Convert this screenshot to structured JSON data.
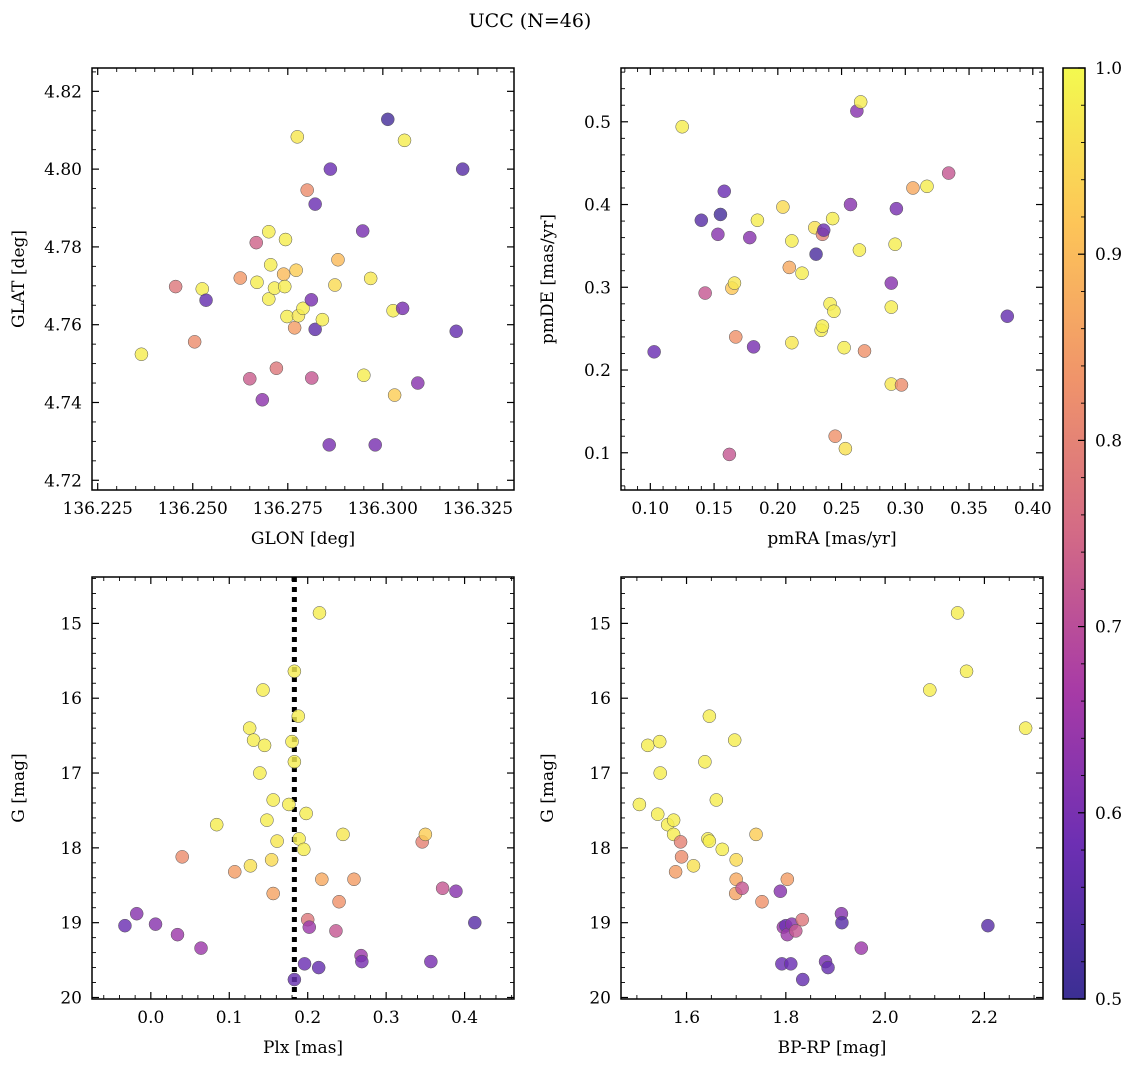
{
  "figure": {
    "title": "UCC (N=46)"
  },
  "colorbar": {
    "min": 0.5,
    "max": 1.0,
    "ticks": [
      "0.5",
      "0.6",
      "0.7",
      "0.8",
      "0.9",
      "1.0"
    ],
    "colormap": "plasma",
    "stops": [
      "#3b2f93",
      "#6d2fb3",
      "#a83ba6",
      "#d36a86",
      "#f0946a",
      "#fdc558",
      "#f3f94f"
    ]
  },
  "chart_data": [
    {
      "id": "glon-glat",
      "type": "scatter",
      "xlabel": "GLON [deg]",
      "ylabel": "GLAT [deg]",
      "xlim": [
        136.2235,
        136.3345
      ],
      "ylim": [
        4.7175,
        4.826
      ],
      "xticks": [
        "136.225",
        "136.250",
        "136.275",
        "136.300",
        "136.325"
      ],
      "yticks": [
        "4.72",
        "4.74",
        "4.76",
        "4.78",
        "4.80",
        "4.82"
      ],
      "points": [
        {
          "x": 136.2365,
          "y": 4.7524,
          "c": 0.98
        },
        {
          "x": 136.2455,
          "y": 4.7698,
          "c": 0.78
        },
        {
          "x": 136.2505,
          "y": 4.7556,
          "c": 0.82
        },
        {
          "x": 136.2525,
          "y": 4.7692,
          "c": 0.98
        },
        {
          "x": 136.2535,
          "y": 4.7663,
          "c": 0.57
        },
        {
          "x": 136.2625,
          "y": 4.772,
          "c": 0.84
        },
        {
          "x": 136.265,
          "y": 4.7461,
          "c": 0.73
        },
        {
          "x": 136.2667,
          "y": 4.7811,
          "c": 0.74
        },
        {
          "x": 136.2669,
          "y": 4.7709,
          "c": 0.98
        },
        {
          "x": 136.2683,
          "y": 4.7407,
          "c": 0.63
        },
        {
          "x": 136.27,
          "y": 4.7839,
          "c": 0.98
        },
        {
          "x": 136.27,
          "y": 4.7666,
          "c": 0.98
        },
        {
          "x": 136.2705,
          "y": 4.7754,
          "c": 0.98
        },
        {
          "x": 136.2715,
          "y": 4.7694,
          "c": 0.98
        },
        {
          "x": 136.272,
          "y": 4.7488,
          "c": 0.78
        },
        {
          "x": 136.2739,
          "y": 4.773,
          "c": 0.9
        },
        {
          "x": 136.2742,
          "y": 4.7698,
          "c": 0.98
        },
        {
          "x": 136.2744,
          "y": 4.7819,
          "c": 0.98
        },
        {
          "x": 136.2748,
          "y": 4.7621,
          "c": 0.98
        },
        {
          "x": 136.2768,
          "y": 4.7592,
          "c": 0.85
        },
        {
          "x": 136.2772,
          "y": 4.774,
          "c": 0.93
        },
        {
          "x": 136.2775,
          "y": 4.8083,
          "c": 0.97
        },
        {
          "x": 136.2778,
          "y": 4.7623,
          "c": 0.97
        },
        {
          "x": 136.279,
          "y": 4.7642,
          "c": 0.98
        },
        {
          "x": 136.2801,
          "y": 4.7946,
          "c": 0.82
        },
        {
          "x": 136.2812,
          "y": 4.7664,
          "c": 0.6
        },
        {
          "x": 136.2813,
          "y": 4.7463,
          "c": 0.72
        },
        {
          "x": 136.2822,
          "y": 4.791,
          "c": 0.58
        },
        {
          "x": 136.2822,
          "y": 4.7588,
          "c": 0.56
        },
        {
          "x": 136.2841,
          "y": 4.7613,
          "c": 0.98
        },
        {
          "x": 136.2859,
          "y": 4.7291,
          "c": 0.6
        },
        {
          "x": 136.2862,
          "y": 4.8,
          "c": 0.58
        },
        {
          "x": 136.2874,
          "y": 4.7702,
          "c": 0.95
        },
        {
          "x": 136.2882,
          "y": 4.7767,
          "c": 0.9
        },
        {
          "x": 136.2947,
          "y": 4.7841,
          "c": 0.6
        },
        {
          "x": 136.295,
          "y": 4.747,
          "c": 0.98
        },
        {
          "x": 136.2968,
          "y": 4.7719,
          "c": 0.97
        },
        {
          "x": 136.298,
          "y": 4.7291,
          "c": 0.6
        },
        {
          "x": 136.3013,
          "y": 4.8128,
          "c": 0.52
        },
        {
          "x": 136.3027,
          "y": 4.7636,
          "c": 0.98
        },
        {
          "x": 136.3031,
          "y": 4.7419,
          "c": 0.93
        },
        {
          "x": 136.3052,
          "y": 4.7642,
          "c": 0.6
        },
        {
          "x": 136.3057,
          "y": 4.8074,
          "c": 0.98
        },
        {
          "x": 136.3092,
          "y": 4.745,
          "c": 0.62
        },
        {
          "x": 136.3193,
          "y": 4.7583,
          "c": 0.57
        },
        {
          "x": 136.321,
          "y": 4.8,
          "c": 0.55
        }
      ]
    },
    {
      "id": "pmra-pmde",
      "type": "scatter",
      "xlabel": "pmRA [mas/yr]",
      "ylabel": "pmDE [mas/yr]",
      "xlim": [
        0.077,
        0.408
      ],
      "ylim": [
        0.055,
        0.565
      ],
      "xticks": [
        "0.10",
        "0.15",
        "0.20",
        "0.25",
        "0.30",
        "0.35",
        "0.40"
      ],
      "yticks": [
        "0.1",
        "0.2",
        "0.3",
        "0.4",
        "0.5"
      ],
      "points": [
        {
          "x": 0.103,
          "y": 0.222,
          "c": 0.58
        },
        {
          "x": 0.125,
          "y": 0.494,
          "c": 0.98
        },
        {
          "x": 0.14,
          "y": 0.381,
          "c": 0.55
        },
        {
          "x": 0.143,
          "y": 0.293,
          "c": 0.72
        },
        {
          "x": 0.153,
          "y": 0.364,
          "c": 0.62
        },
        {
          "x": 0.155,
          "y": 0.388,
          "c": 0.52
        },
        {
          "x": 0.158,
          "y": 0.416,
          "c": 0.58
        },
        {
          "x": 0.162,
          "y": 0.098,
          "c": 0.72
        },
        {
          "x": 0.164,
          "y": 0.299,
          "c": 0.92
        },
        {
          "x": 0.166,
          "y": 0.305,
          "c": 0.97
        },
        {
          "x": 0.167,
          "y": 0.24,
          "c": 0.83
        },
        {
          "x": 0.178,
          "y": 0.36,
          "c": 0.62
        },
        {
          "x": 0.181,
          "y": 0.228,
          "c": 0.6
        },
        {
          "x": 0.184,
          "y": 0.381,
          "c": 0.98
        },
        {
          "x": 0.204,
          "y": 0.397,
          "c": 0.95
        },
        {
          "x": 0.209,
          "y": 0.324,
          "c": 0.87
        },
        {
          "x": 0.211,
          "y": 0.356,
          "c": 0.98
        },
        {
          "x": 0.211,
          "y": 0.233,
          "c": 0.97
        },
        {
          "x": 0.219,
          "y": 0.317,
          "c": 0.98
        },
        {
          "x": 0.229,
          "y": 0.372,
          "c": 0.96
        },
        {
          "x": 0.23,
          "y": 0.34,
          "c": 0.53
        },
        {
          "x": 0.234,
          "y": 0.248,
          "c": 0.98
        },
        {
          "x": 0.235,
          "y": 0.253,
          "c": 0.98
        },
        {
          "x": 0.235,
          "y": 0.364,
          "c": 0.8
        },
        {
          "x": 0.236,
          "y": 0.369,
          "c": 0.58
        },
        {
          "x": 0.241,
          "y": 0.28,
          "c": 0.98
        },
        {
          "x": 0.243,
          "y": 0.383,
          "c": 0.98
        },
        {
          "x": 0.244,
          "y": 0.271,
          "c": 0.98
        },
        {
          "x": 0.245,
          "y": 0.12,
          "c": 0.83
        },
        {
          "x": 0.252,
          "y": 0.227,
          "c": 0.98
        },
        {
          "x": 0.253,
          "y": 0.105,
          "c": 0.96
        },
        {
          "x": 0.257,
          "y": 0.4,
          "c": 0.62
        },
        {
          "x": 0.262,
          "y": 0.513,
          "c": 0.62
        },
        {
          "x": 0.264,
          "y": 0.345,
          "c": 0.98
        },
        {
          "x": 0.265,
          "y": 0.524,
          "c": 0.98
        },
        {
          "x": 0.268,
          "y": 0.223,
          "c": 0.83
        },
        {
          "x": 0.289,
          "y": 0.183,
          "c": 0.97
        },
        {
          "x": 0.289,
          "y": 0.276,
          "c": 0.98
        },
        {
          "x": 0.289,
          "y": 0.305,
          "c": 0.62
        },
        {
          "x": 0.292,
          "y": 0.352,
          "c": 0.98
        },
        {
          "x": 0.293,
          "y": 0.395,
          "c": 0.6
        },
        {
          "x": 0.297,
          "y": 0.182,
          "c": 0.82
        },
        {
          "x": 0.306,
          "y": 0.42,
          "c": 0.87
        },
        {
          "x": 0.317,
          "y": 0.422,
          "c": 0.98
        },
        {
          "x": 0.334,
          "y": 0.438,
          "c": 0.72
        },
        {
          "x": 0.38,
          "y": 0.265,
          "c": 0.57
        }
      ]
    },
    {
      "id": "plx-g",
      "type": "scatter",
      "xlabel": "Plx [mas]",
      "ylabel": "G [mag]",
      "xlim": [
        -0.075,
        0.463
      ],
      "ylim": [
        20.02,
        14.38
      ],
      "invert_y": true,
      "xticks": [
        "0.0",
        "0.1",
        "0.2",
        "0.3",
        "0.4"
      ],
      "yticks": [
        "15",
        "16",
        "17",
        "18",
        "19",
        "20"
      ],
      "vline": 0.183,
      "points": [
        {
          "x": -0.033,
          "y": 19.04,
          "c": 0.58
        },
        {
          "x": -0.018,
          "y": 18.88,
          "c": 0.62
        },
        {
          "x": 0.006,
          "y": 19.02,
          "c": 0.62
        },
        {
          "x": 0.034,
          "y": 19.16,
          "c": 0.65
        },
        {
          "x": 0.04,
          "y": 18.12,
          "c": 0.82
        },
        {
          "x": 0.064,
          "y": 19.34,
          "c": 0.65
        },
        {
          "x": 0.084,
          "y": 17.69,
          "c": 0.98
        },
        {
          "x": 0.107,
          "y": 18.32,
          "c": 0.85
        },
        {
          "x": 0.126,
          "y": 16.4,
          "c": 0.98
        },
        {
          "x": 0.127,
          "y": 18.24,
          "c": 0.96
        },
        {
          "x": 0.131,
          "y": 16.56,
          "c": 0.98
        },
        {
          "x": 0.139,
          "y": 17.0,
          "c": 0.98
        },
        {
          "x": 0.143,
          "y": 15.89,
          "c": 0.98
        },
        {
          "x": 0.145,
          "y": 16.63,
          "c": 0.98
        },
        {
          "x": 0.148,
          "y": 17.63,
          "c": 0.98
        },
        {
          "x": 0.154,
          "y": 18.16,
          "c": 0.95
        },
        {
          "x": 0.156,
          "y": 17.36,
          "c": 0.98
        },
        {
          "x": 0.156,
          "y": 18.61,
          "c": 0.86
        },
        {
          "x": 0.161,
          "y": 17.91,
          "c": 0.97
        },
        {
          "x": 0.176,
          "y": 17.42,
          "c": 0.98
        },
        {
          "x": 0.18,
          "y": 16.58,
          "c": 0.98
        },
        {
          "x": 0.183,
          "y": 15.64,
          "c": 0.98
        },
        {
          "x": 0.183,
          "y": 16.85,
          "c": 0.98
        },
        {
          "x": 0.183,
          "y": 19.76,
          "c": 0.57
        },
        {
          "x": 0.188,
          "y": 16.24,
          "c": 0.98
        },
        {
          "x": 0.189,
          "y": 17.88,
          "c": 0.98
        },
        {
          "x": 0.195,
          "y": 18.02,
          "c": 0.98
        },
        {
          "x": 0.196,
          "y": 19.55,
          "c": 0.58
        },
        {
          "x": 0.198,
          "y": 17.54,
          "c": 0.98
        },
        {
          "x": 0.2,
          "y": 18.96,
          "c": 0.78
        },
        {
          "x": 0.202,
          "y": 19.06,
          "c": 0.65
        },
        {
          "x": 0.214,
          "y": 19.6,
          "c": 0.57
        },
        {
          "x": 0.215,
          "y": 14.86,
          "c": 0.98
        },
        {
          "x": 0.218,
          "y": 18.42,
          "c": 0.87
        },
        {
          "x": 0.236,
          "y": 19.11,
          "c": 0.72
        },
        {
          "x": 0.24,
          "y": 18.72,
          "c": 0.83
        },
        {
          "x": 0.245,
          "y": 17.82,
          "c": 0.97
        },
        {
          "x": 0.259,
          "y": 18.42,
          "c": 0.85
        },
        {
          "x": 0.268,
          "y": 19.44,
          "c": 0.65
        },
        {
          "x": 0.269,
          "y": 19.52,
          "c": 0.6
        },
        {
          "x": 0.346,
          "y": 17.92,
          "c": 0.8
        },
        {
          "x": 0.35,
          "y": 17.82,
          "c": 0.93
        },
        {
          "x": 0.357,
          "y": 19.52,
          "c": 0.6
        },
        {
          "x": 0.372,
          "y": 18.54,
          "c": 0.72
        },
        {
          "x": 0.389,
          "y": 18.58,
          "c": 0.62
        },
        {
          "x": 0.413,
          "y": 19.0,
          "c": 0.55
        }
      ]
    },
    {
      "id": "bprp-g",
      "type": "scatter",
      "xlabel": "BP-RP [mag]",
      "ylabel": "G [mag]",
      "xlim": [
        1.468,
        2.318
      ],
      "ylim": [
        20.02,
        14.38
      ],
      "invert_y": true,
      "xticks": [
        "1.6",
        "1.8",
        "2.0",
        "2.2"
      ],
      "yticks": [
        "15",
        "16",
        "17",
        "18",
        "19",
        "20"
      ],
      "points": [
        {
          "x": 1.505,
          "y": 17.42,
          "c": 0.98
        },
        {
          "x": 1.522,
          "y": 16.63,
          "c": 0.98
        },
        {
          "x": 1.542,
          "y": 17.55,
          "c": 0.98
        },
        {
          "x": 1.546,
          "y": 16.58,
          "c": 0.98
        },
        {
          "x": 1.547,
          "y": 17.0,
          "c": 0.98
        },
        {
          "x": 1.562,
          "y": 17.69,
          "c": 0.98
        },
        {
          "x": 1.574,
          "y": 17.82,
          "c": 0.98
        },
        {
          "x": 1.574,
          "y": 17.63,
          "c": 0.98
        },
        {
          "x": 1.578,
          "y": 18.32,
          "c": 0.85
        },
        {
          "x": 1.588,
          "y": 17.92,
          "c": 0.8
        },
        {
          "x": 1.59,
          "y": 18.12,
          "c": 0.82
        },
        {
          "x": 1.614,
          "y": 18.24,
          "c": 0.96
        },
        {
          "x": 1.637,
          "y": 16.85,
          "c": 0.98
        },
        {
          "x": 1.643,
          "y": 17.88,
          "c": 0.98
        },
        {
          "x": 1.646,
          "y": 16.24,
          "c": 0.98
        },
        {
          "x": 1.646,
          "y": 17.91,
          "c": 0.98
        },
        {
          "x": 1.66,
          "y": 17.36,
          "c": 0.98
        },
        {
          "x": 1.672,
          "y": 18.02,
          "c": 0.98
        },
        {
          "x": 1.697,
          "y": 16.56,
          "c": 0.98
        },
        {
          "x": 1.699,
          "y": 18.61,
          "c": 0.86
        },
        {
          "x": 1.7,
          "y": 18.42,
          "c": 0.87
        },
        {
          "x": 1.7,
          "y": 18.16,
          "c": 0.95
        },
        {
          "x": 1.712,
          "y": 18.54,
          "c": 0.72
        },
        {
          "x": 1.74,
          "y": 17.82,
          "c": 0.93
        },
        {
          "x": 1.752,
          "y": 18.72,
          "c": 0.83
        },
        {
          "x": 1.789,
          "y": 18.58,
          "c": 0.62
        },
        {
          "x": 1.792,
          "y": 19.55,
          "c": 0.58
        },
        {
          "x": 1.795,
          "y": 19.06,
          "c": 0.65
        },
        {
          "x": 1.8,
          "y": 19.04,
          "c": 0.58
        },
        {
          "x": 1.803,
          "y": 18.42,
          "c": 0.85
        },
        {
          "x": 1.803,
          "y": 19.16,
          "c": 0.65
        },
        {
          "x": 1.81,
          "y": 19.55,
          "c": 0.58
        },
        {
          "x": 1.812,
          "y": 19.02,
          "c": 0.62
        },
        {
          "x": 1.82,
          "y": 19.11,
          "c": 0.72
        },
        {
          "x": 1.833,
          "y": 18.96,
          "c": 0.78
        },
        {
          "x": 1.834,
          "y": 19.76,
          "c": 0.57
        },
        {
          "x": 1.88,
          "y": 19.52,
          "c": 0.6
        },
        {
          "x": 1.885,
          "y": 19.6,
          "c": 0.57
        },
        {
          "x": 1.912,
          "y": 18.88,
          "c": 0.62
        },
        {
          "x": 1.913,
          "y": 19.0,
          "c": 0.55
        },
        {
          "x": 1.952,
          "y": 19.34,
          "c": 0.65
        },
        {
          "x": 2.09,
          "y": 15.89,
          "c": 0.98
        },
        {
          "x": 2.146,
          "y": 14.86,
          "c": 0.98
        },
        {
          "x": 2.164,
          "y": 15.64,
          "c": 0.98
        },
        {
          "x": 2.207,
          "y": 19.04,
          "c": 0.55
        },
        {
          "x": 2.283,
          "y": 16.4,
          "c": 0.98
        }
      ]
    }
  ]
}
